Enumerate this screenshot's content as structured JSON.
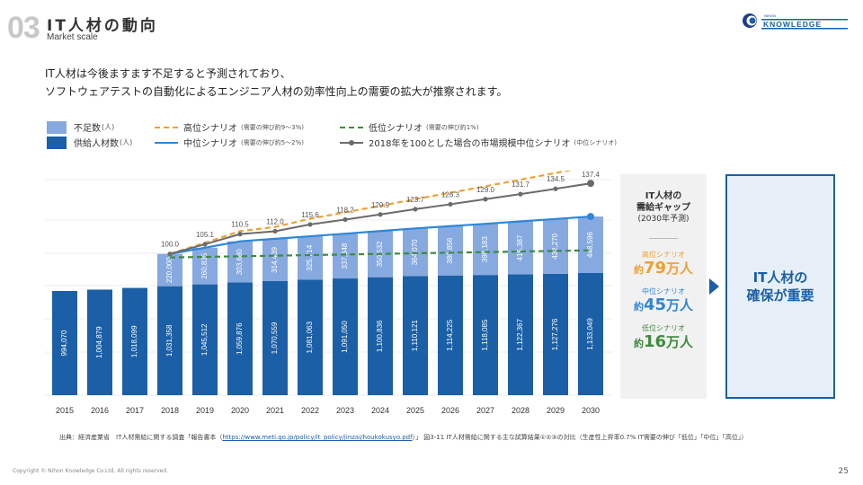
{
  "header": {
    "section_number": "03",
    "title": "IT人材の動向",
    "subtitle": "Market scale"
  },
  "logo": {
    "small_text": "NIHON",
    "name": "KNOWLEDGE"
  },
  "lead": {
    "line1": "IT人材は今後ますます不足すると予測されており、",
    "line2": "ソフトウェアテストの自動化によるエンジニア人材の効率性向上の需要の拡大が推察されます。"
  },
  "legend": {
    "shortage": {
      "label": "不足数",
      "unit": "(人)",
      "color": "#86a9e0"
    },
    "supply": {
      "label": "供給人材数",
      "unit": "(人)",
      "color": "#1b5fa6"
    },
    "high": {
      "label": "高位シナリオ",
      "note": "(需要の伸び約9〜3%)",
      "color": "#f0a030"
    },
    "mid": {
      "label": "中位シナリオ",
      "note": "(需要の伸び約5〜2%)",
      "color": "#2f86d6"
    },
    "low": {
      "label": "低位シナリオ",
      "note": "(需要の伸び約1%)",
      "color": "#3f8a3f"
    },
    "market": {
      "label": "2018年を100とした場合の市場規模中位シナリオ",
      "note": "(中位シナリオ)",
      "color": "#6b6b6b"
    }
  },
  "chart_data": {
    "type": "bar",
    "title": "IT人材の動向",
    "xlabel": "",
    "ylabel": "",
    "categories": [
      "2015",
      "2016",
      "2017",
      "2018",
      "2019",
      "2020",
      "2021",
      "2022",
      "2023",
      "2024",
      "2025",
      "2026",
      "2027",
      "2028",
      "2029",
      "2030"
    ],
    "series": [
      {
        "name": "供給人材数(人)",
        "kind": "stacked-bar",
        "values": [
          994070,
          1004879,
          1018099,
          1031358,
          1045512,
          1059876,
          1070559,
          1081063,
          1091050,
          1100836,
          1110121,
          1114225,
          1118085,
          1122367,
          1127276,
          1133049
        ],
        "labels": [
          "994,070",
          "1,004,879",
          "1,018,099",
          "1,031,358",
          "1,045,512",
          "1,059,876",
          "1,070,559",
          "1,081,063",
          "1,091,050",
          "1,100,836",
          "1,110,121",
          "1,114,225",
          "1,118,085",
          "1,122,367",
          "1,127,276",
          "1,133,049"
        ]
      },
      {
        "name": "不足数(人)",
        "kind": "stacked-bar",
        "values": [
          null,
          null,
          null,
          220000,
          260835,
          303680,
          314439,
          325714,
          337848,
          350532,
          364070,
          380856,
          398183,
          415387,
          432270,
          448596
        ],
        "labels": [
          null,
          null,
          null,
          "220,000",
          "260,835",
          "303,680",
          "314,439",
          "325,714",
          "337,848",
          "350,532",
          "364,070",
          "380,856",
          "398,183",
          "415,387",
          "432,270",
          "448,596"
        ]
      },
      {
        "name": "2018年を100とした場合の市場規模中位シナリオ",
        "kind": "line-index",
        "values": [
          null,
          null,
          null,
          100.0,
          105.1,
          110.5,
          112.0,
          115.6,
          118.2,
          120.9,
          123.7,
          126.3,
          129.0,
          131.7,
          134.5,
          137.4
        ],
        "labels": [
          null,
          null,
          null,
          "100.0",
          "105.1",
          "110.5",
          "112.0",
          "115.6",
          "118.2",
          "120.9",
          "123.7",
          "126.3",
          "129.0",
          "131.7",
          "134.5",
          "137.4"
        ]
      },
      {
        "name": "高位シナリオ",
        "kind": "line-dashed",
        "start": 2018,
        "end": 2030,
        "gap_2030": 790000
      },
      {
        "name": "中位シナリオ",
        "kind": "line",
        "start": 2018,
        "end": 2030,
        "gap_2030": 450000
      },
      {
        "name": "低位シナリオ",
        "kind": "line-dashed",
        "start": 2018,
        "end": 2030,
        "gap_2030": 160000
      }
    ],
    "grid": true,
    "legend_position": "top-left"
  },
  "gap_panel": {
    "title1": "IT人材の",
    "title2": "需給ギャップ",
    "title3": "(2030年予測)",
    "items": [
      {
        "label": "高位シナリオ",
        "prefix": "約",
        "value": "79",
        "suffix": "万人",
        "color": "#f0a030"
      },
      {
        "label": "中位シナリオ",
        "prefix": "約",
        "value": "45",
        "suffix": "万人",
        "color": "#2f86d6"
      },
      {
        "label": "低位シナリオ",
        "prefix": "約",
        "value": "16",
        "suffix": "万人",
        "color": "#3f8a3f"
      }
    ]
  },
  "conclusion": {
    "line1": "IT人材の",
    "line2": "確保が重要"
  },
  "source": {
    "prefix": "出典：経済産業省　IT人材需給に関する調査「報告書本（",
    "link": "https://www.meti.go.jp/policy/it_policy/jinzai/houkokusyo.pdf",
    "suffix": "）」 図3-11 IT人材需給に関する主な試算結果①②③の対比（生産性上昇率0.7% IT需要の伸び「低位」「中位」「高位」）"
  },
  "footer": {
    "copyright": "Copyright © Nihon Knowledge Co.Ltd. All rights reserved.",
    "page": "25"
  }
}
